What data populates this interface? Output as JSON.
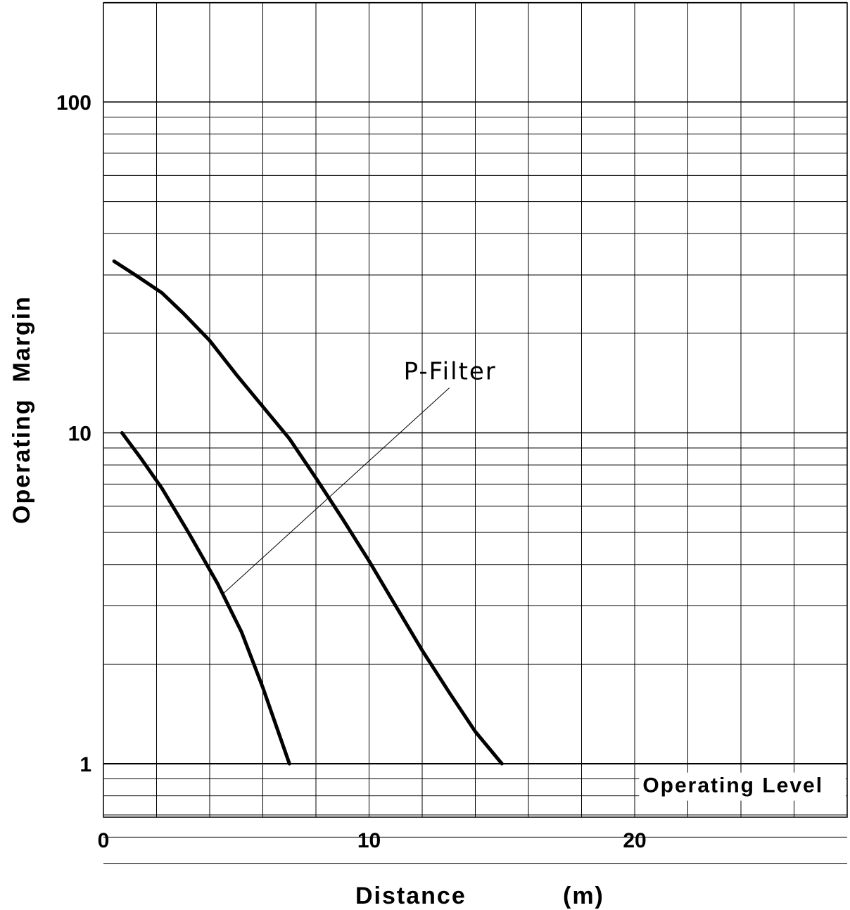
{
  "chart_data": {
    "type": "line",
    "xlabel": "Distance",
    "xunit": "(m)",
    "ylabel": "Operating  Margin",
    "xlim": [
      0,
      28
    ],
    "ylim": [
      0.46,
      210
    ],
    "yscale": "log",
    "grid": true,
    "x_ticks": [
      0,
      10,
      20
    ],
    "y_ticks": [
      1,
      10,
      100
    ],
    "x_tick_labels": [
      "0",
      "10",
      "20"
    ],
    "y_tick_labels": [
      "1",
      "10",
      "100"
    ],
    "series": [
      {
        "name": "P-Filter",
        "x": [
          0.7,
          1.4,
          2.2,
          3.2,
          4.3,
          5.2,
          6.0,
          7.0
        ],
        "y": [
          10,
          8.4,
          6.8,
          5.0,
          3.5,
          2.5,
          1.7,
          1.0
        ]
      },
      {
        "x": [
          0.4,
          1.2,
          2.2,
          3.0,
          4.0,
          5.0,
          6.0,
          7.0,
          8.0,
          9.0,
          10.0,
          11.0,
          12.0,
          13.0,
          14.0,
          15.0
        ],
        "y": [
          33,
          30,
          26.5,
          23,
          19,
          15,
          12,
          9.6,
          7.3,
          5.5,
          4.1,
          3.0,
          2.2,
          1.65,
          1.25,
          1.0
        ]
      }
    ],
    "annotations": [
      {
        "text": "P-Filter",
        "x": 11.3,
        "y": 14.5,
        "points_to": [
          4.3,
          3.3
        ]
      },
      {
        "text": "Operating  Level",
        "x": 20.3,
        "y": 0.82
      }
    ],
    "reference_line": {
      "y": 1
    }
  }
}
